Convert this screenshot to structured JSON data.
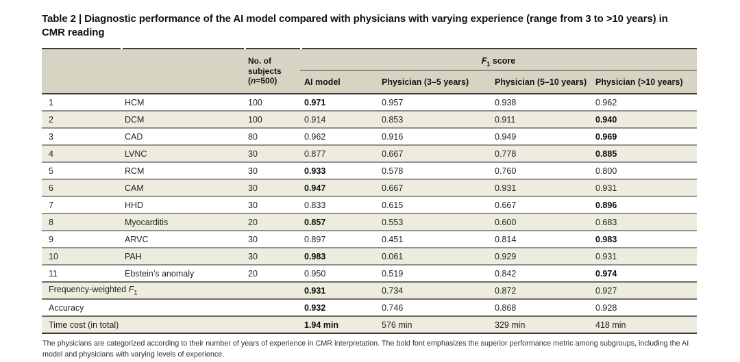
{
  "title": "Table 2 | Diagnostic performance of the AI model compared with physicians with varying experience (range from 3 to >10 years) in CMR reading",
  "table": {
    "header": {
      "subjects_label": "No. of subjects",
      "n_open": "(",
      "n_italic": "n",
      "n_rest": "=500)",
      "f1_f": "F",
      "f1_sub": "1",
      "f1_rest": " score",
      "columns": [
        "AI model",
        "Physician (3–5 years)",
        "Physician (5–10 years)",
        "Physician (>10 years)"
      ]
    },
    "rows": [
      {
        "num": "1",
        "name": "HCM",
        "subjects": "100",
        "ai": "0.971",
        "p35": "0.957",
        "p510": "0.938",
        "p10": "0.962",
        "bold": "ai"
      },
      {
        "num": "2",
        "name": "DCM",
        "subjects": "100",
        "ai": "0.914",
        "p35": "0.853",
        "p510": "0.911",
        "p10": "0.940",
        "bold": "p10"
      },
      {
        "num": "3",
        "name": "CAD",
        "subjects": "80",
        "ai": "0.962",
        "p35": "0.916",
        "p510": "0.949",
        "p10": "0.969",
        "bold": "p10"
      },
      {
        "num": "4",
        "name": "LVNC",
        "subjects": "30",
        "ai": "0.877",
        "p35": "0.667",
        "p510": "0.778",
        "p10": "0.885",
        "bold": "p10"
      },
      {
        "num": "5",
        "name": "RCM",
        "subjects": "30",
        "ai": "0.933",
        "p35": "0.578",
        "p510": "0.760",
        "p10": "0.800",
        "bold": "ai"
      },
      {
        "num": "6",
        "name": "CAM",
        "subjects": "30",
        "ai": "0.947",
        "p35": "0.667",
        "p510": "0.931",
        "p10": "0.931",
        "bold": "ai"
      },
      {
        "num": "7",
        "name": "HHD",
        "subjects": "30",
        "ai": "0.833",
        "p35": "0.615",
        "p510": "0.667",
        "p10": "0.896",
        "bold": "p10"
      },
      {
        "num": "8",
        "name": "Myocarditis",
        "subjects": "20",
        "ai": "0.857",
        "p35": "0.553",
        "p510": "0.600",
        "p10": "0.683",
        "bold": "ai"
      },
      {
        "num": "9",
        "name": "ARVC",
        "subjects": "30",
        "ai": "0.897",
        "p35": "0.451",
        "p510": "0.814",
        "p10": "0.983",
        "bold": "p10"
      },
      {
        "num": "10",
        "name": "PAH",
        "subjects": "30",
        "ai": "0.983",
        "p35": "0.061",
        "p510": "0.929",
        "p10": "0.931",
        "bold": "ai"
      },
      {
        "num": "11",
        "name": "Ebstein’s anomaly",
        "subjects": "20",
        "ai": "0.950",
        "p35": "0.519",
        "p510": "0.842",
        "p10": "0.974",
        "bold": "p10"
      }
    ],
    "summary_rows": [
      {
        "label": "Frequency-weighted ",
        "label_f": "F",
        "label_sub": "1",
        "ai": "0.931",
        "p35": "0.734",
        "p510": "0.872",
        "p10": "0.927",
        "bold": "ai"
      },
      {
        "label": "Accuracy",
        "label_f": "",
        "label_sub": "",
        "ai": "0.932",
        "p35": "0.746",
        "p510": "0.868",
        "p10": "0.928",
        "bold": "ai"
      },
      {
        "label": "Time cost (in total)",
        "label_f": "",
        "label_sub": "",
        "ai": "1.94 min",
        "p35": "576 min",
        "p510": "329 min",
        "p10": "418 min",
        "bold": "ai"
      }
    ]
  },
  "footnote": "The physicians are categorized according to their number of years of experience in CMR interpretation. The bold font emphasizes the superior performance metric among subgroups, including the AI model and physicians with varying levels of experience."
}
